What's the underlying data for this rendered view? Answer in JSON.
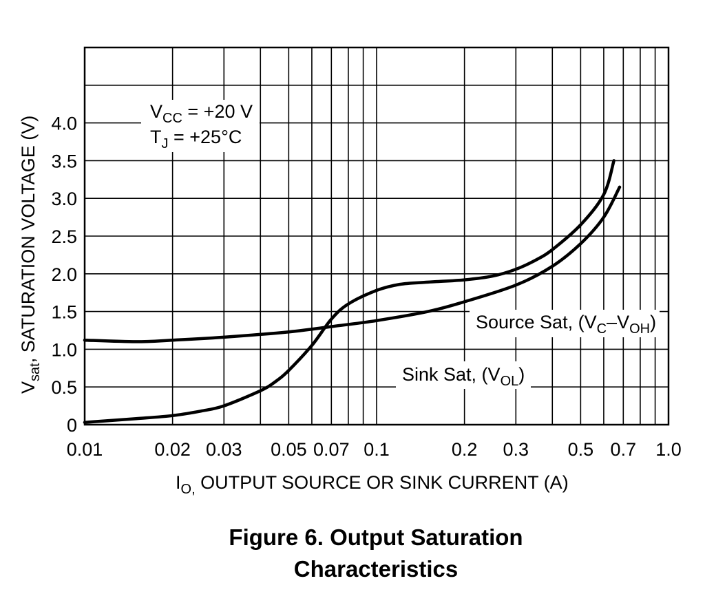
{
  "chart_data": {
    "type": "line",
    "x_scale": "log",
    "xlim": [
      0.01,
      1.0
    ],
    "ylim": [
      0,
      5
    ],
    "grid": true,
    "x_ticks": [
      "0.01",
      "0.02",
      "0.03",
      "0.05",
      "0.07",
      "0.1",
      "0.2",
      "0.3",
      "0.5",
      "0.7",
      "1.0"
    ],
    "x_tick_values": [
      0.01,
      0.02,
      0.03,
      0.05,
      0.07,
      0.1,
      0.2,
      0.3,
      0.5,
      0.7,
      1.0
    ],
    "y_ticks": [
      "0",
      "0.5",
      "1.0",
      "1.5",
      "2.0",
      "2.5",
      "3.0",
      "3.5",
      "4.0"
    ],
    "y_tick_values": [
      0,
      0.5,
      1.0,
      1.5,
      2.0,
      2.5,
      3.0,
      3.5,
      4.0
    ],
    "xlabel": {
      "main": "I",
      "sub": "O,",
      "rest": " OUTPUT SOURCE OR SINK CURRENT (A)"
    },
    "ylabel": {
      "main": "V",
      "sub": "sat",
      "rest": ", SATURATION VOLTAGE (V)"
    },
    "conditions": [
      {
        "main": "V",
        "sub": "CC",
        "rest": " = +20 V"
      },
      {
        "main": "T",
        "sub": "J",
        "rest": " = +25°C"
      }
    ],
    "series": [
      {
        "name": "Source Sat",
        "label": {
          "main": "Source Sat, (V",
          "sub1": "C",
          "mid": "–V",
          "sub2": "OH",
          "end": ")"
        },
        "x": [
          0.01,
          0.015,
          0.02,
          0.03,
          0.05,
          0.07,
          0.1,
          0.15,
          0.2,
          0.3,
          0.4,
          0.5,
          0.6,
          0.68
        ],
        "y": [
          1.12,
          1.1,
          1.12,
          1.16,
          1.23,
          1.3,
          1.38,
          1.5,
          1.63,
          1.85,
          2.1,
          2.4,
          2.75,
          3.15
        ]
      },
      {
        "name": "Sink Sat",
        "label": {
          "main": "Sink Sat, (V",
          "sub1": "OL",
          "end": ")"
        },
        "x": [
          0.01,
          0.015,
          0.02,
          0.025,
          0.03,
          0.04,
          0.045,
          0.05,
          0.06,
          0.07,
          0.08,
          0.1,
          0.12,
          0.15,
          0.2,
          0.25,
          0.3,
          0.35,
          0.4,
          0.5,
          0.6,
          0.65
        ],
        "y": [
          0.03,
          0.08,
          0.12,
          0.18,
          0.25,
          0.45,
          0.57,
          0.72,
          1.05,
          1.4,
          1.6,
          1.78,
          1.86,
          1.89,
          1.92,
          1.97,
          2.06,
          2.18,
          2.32,
          2.65,
          3.05,
          3.5
        ]
      }
    ]
  },
  "caption": {
    "line1": "Figure 6. Output Saturation",
    "line2": "Characteristics"
  }
}
